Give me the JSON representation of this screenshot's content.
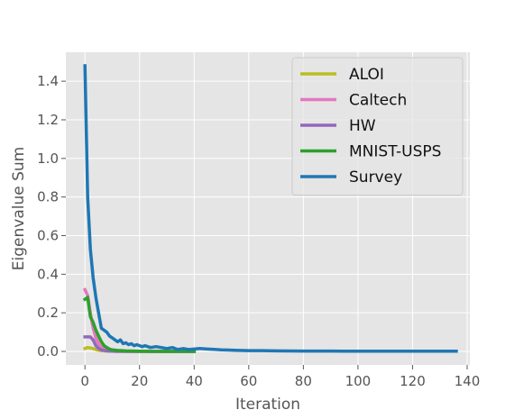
{
  "chart_data": {
    "type": "line",
    "title": "",
    "xlabel": "Iteration",
    "ylabel": "Eigenvalue Sum",
    "xlim": [
      -7,
      141
    ],
    "ylim": [
      -0.07,
      1.55
    ],
    "xticks": [
      0,
      20,
      40,
      60,
      80,
      100,
      120,
      140
    ],
    "yticks": [
      0.0,
      0.2,
      0.4,
      0.6,
      0.8,
      1.0,
      1.2,
      1.4
    ],
    "xtick_labels": [
      "0",
      "20",
      "40",
      "60",
      "80",
      "100",
      "120",
      "140"
    ],
    "ytick_labels": [
      "0.0",
      "0.2",
      "0.4",
      "0.6",
      "0.8",
      "1.0",
      "1.2",
      "1.4"
    ],
    "grid": true,
    "background": "#e5e5e5",
    "grid_color": "#ffffff",
    "legend_position": "top-right",
    "series": [
      {
        "name": "ALOI",
        "color": "#bcbd22",
        "x": [
          0,
          1,
          2,
          3,
          4,
          5,
          6,
          8,
          10,
          15,
          20,
          30,
          40
        ],
        "y": [
          0.015,
          0.02,
          0.018,
          0.015,
          0.01,
          0.006,
          0.004,
          0.002,
          0.001,
          0.0,
          0.0,
          0.0,
          0.0
        ]
      },
      {
        "name": "Caltech",
        "color": "#e377c2",
        "x": [
          0,
          1,
          2,
          3,
          4,
          5,
          6,
          7,
          8,
          10,
          12,
          15,
          20,
          25,
          30,
          35,
          40
        ],
        "y": [
          0.32,
          0.29,
          0.2,
          0.12,
          0.07,
          0.04,
          0.02,
          0.012,
          0.008,
          0.004,
          0.002,
          0.001,
          0.0,
          0.0,
          0.0,
          0.0,
          0.0
        ]
      },
      {
        "name": "HW",
        "color": "#9467bd",
        "x": [
          0,
          1,
          2,
          3,
          4,
          5,
          6,
          8,
          10,
          15,
          20,
          30,
          40
        ],
        "y": [
          0.075,
          0.075,
          0.075,
          0.06,
          0.03,
          0.015,
          0.008,
          0.003,
          0.001,
          0.0,
          0.0,
          0.0,
          0.0
        ]
      },
      {
        "name": "MNIST-USPS",
        "color": "#2ca02c",
        "x": [
          0,
          1,
          2,
          3,
          4,
          5,
          6,
          7,
          8,
          9,
          10,
          12,
          15,
          20,
          25,
          30,
          35,
          40
        ],
        "y": [
          0.27,
          0.28,
          0.18,
          0.15,
          0.11,
          0.08,
          0.05,
          0.03,
          0.02,
          0.012,
          0.008,
          0.005,
          0.003,
          0.001,
          0.0,
          0.0,
          0.0,
          0.0
        ]
      },
      {
        "name": "Survey",
        "color": "#1f77b4",
        "x": [
          0,
          1,
          2,
          3,
          4,
          5,
          6,
          7,
          8,
          9,
          10,
          11,
          12,
          13,
          14,
          15,
          16,
          17,
          18,
          19,
          20,
          21,
          22,
          24,
          26,
          28,
          30,
          32,
          34,
          36,
          38,
          40,
          42,
          45,
          48,
          50,
          55,
          60,
          65,
          70,
          80,
          90,
          100,
          110,
          120,
          130,
          136
        ],
        "y": [
          1.48,
          0.8,
          0.53,
          0.38,
          0.28,
          0.2,
          0.12,
          0.11,
          0.1,
          0.08,
          0.07,
          0.06,
          0.05,
          0.06,
          0.04,
          0.045,
          0.035,
          0.04,
          0.03,
          0.035,
          0.03,
          0.025,
          0.03,
          0.02,
          0.025,
          0.02,
          0.015,
          0.02,
          0.01,
          0.015,
          0.01,
          0.012,
          0.015,
          0.012,
          0.01,
          0.008,
          0.006,
          0.004,
          0.004,
          0.003,
          0.002,
          0.002,
          0.001,
          0.001,
          0.001,
          0.001,
          0.001
        ]
      }
    ]
  }
}
